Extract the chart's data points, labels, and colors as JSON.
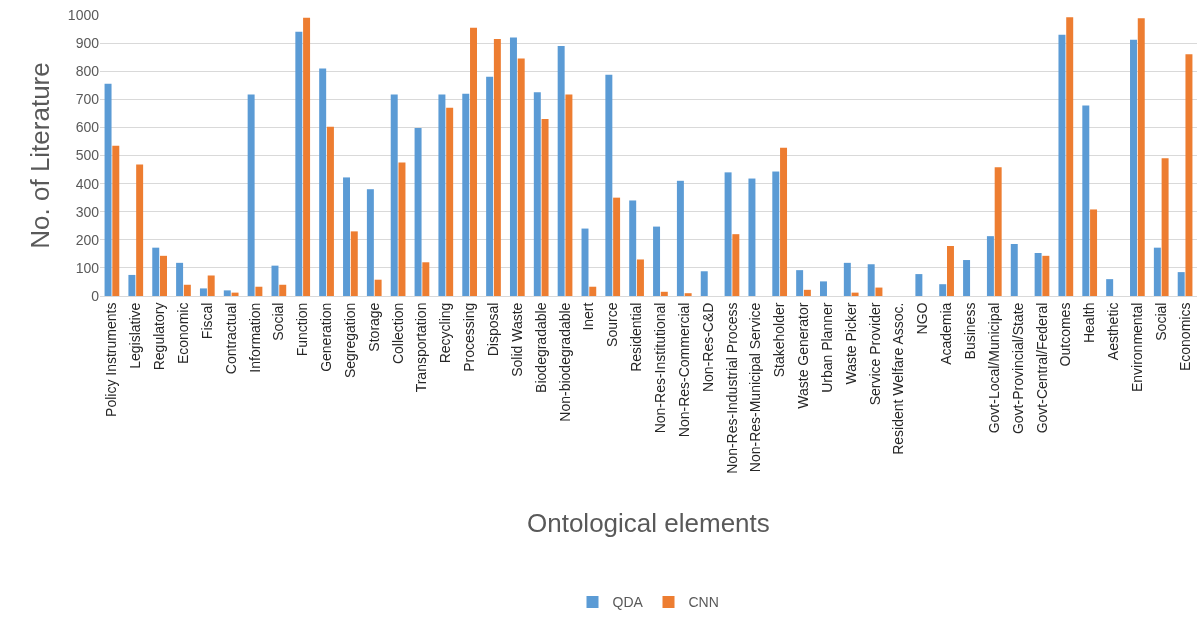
{
  "chart_data": {
    "type": "bar",
    "xlabel": "Ontological elements",
    "ylabel": "No. of Literature",
    "categories": [
      "Policy Instruments",
      "Legislative",
      "Regulatory",
      "Economic",
      "Fiscal",
      "Contractual",
      "Information",
      "Social",
      "Function",
      "Generation",
      "Segregation",
      "Storage",
      "Collection",
      "Transportation",
      "Recycling",
      "Processing",
      "Disposal",
      "Solid Waste",
      "Biodegradable",
      "Non-biodegradable",
      "Inert",
      "Source",
      "Residential",
      "Non-Res-Institutional",
      "Non-Res-Commercial",
      "Non-Res-C&D",
      "Non-Res-Industrial Process",
      "Non-Res-Municipal Service",
      "Stakeholder",
      "Waste Generator",
      "Urban Planner",
      "Waste Picker",
      "Service Provider",
      "Resident Welfare Assoc.",
      "NGO",
      "Academia",
      "Business",
      "Govt-Local/Municipal",
      "Govt-Provincial/State",
      "Govt-Central/Federal",
      "Outcomes",
      "Health",
      "Aesthetic",
      "Environmental",
      "Social",
      "Economics"
    ],
    "series": [
      {
        "name": "QDA",
        "color": "#5b9bd5",
        "values": [
          755,
          75,
          172,
          118,
          27,
          20,
          717,
          108,
          940,
          810,
          422,
          380,
          717,
          598,
          717,
          720,
          780,
          920,
          725,
          890,
          240,
          787,
          340,
          247,
          410,
          88,
          440,
          418,
          443,
          92,
          52,
          118,
          113,
          null,
          78,
          42,
          128,
          213,
          185,
          153,
          930,
          678,
          60,
          912,
          172,
          85
        ]
      },
      {
        "name": "CNN",
        "color": "#ed7d31",
        "values": [
          535,
          468,
          143,
          40,
          73,
          12,
          33,
          40,
          990,
          602,
          230,
          58,
          475,
          120,
          670,
          955,
          915,
          845,
          630,
          717,
          33,
          350,
          130,
          15,
          10,
          null,
          220,
          null,
          528,
          22,
          null,
          12,
          30,
          null,
          null,
          178,
          null,
          458,
          null,
          143,
          992,
          308,
          null,
          988,
          490,
          860
        ]
      }
    ],
    "ylim": [
      0,
      1000
    ],
    "yticks": [
      0,
      100,
      200,
      300,
      400,
      500,
      600,
      700,
      800,
      900,
      1000
    ],
    "grid": "y",
    "legend": "bottom"
  }
}
